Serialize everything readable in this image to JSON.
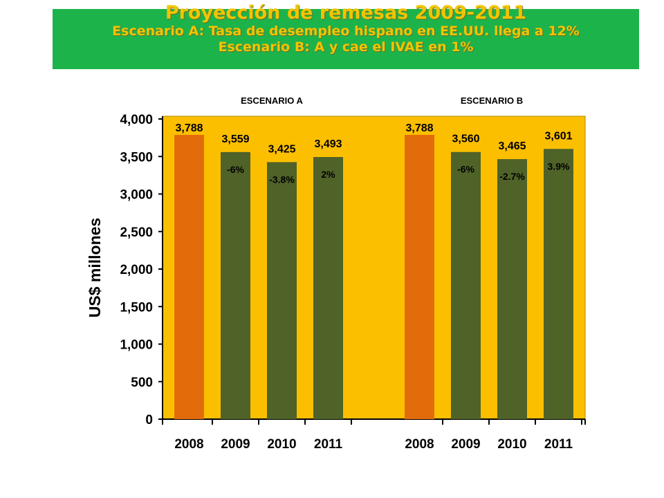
{
  "title": {
    "main": "Proyección de remesas 2009-2011",
    "line1": "Escenario A: Tasa de desempleo hispano en EE.UU. llega a 12%",
    "line2": "Escenario B: A y cae el IVAE en 1%"
  },
  "colors": {
    "banner": "#1db34b",
    "title_text": "#f3c400",
    "plot_bg": "#fbbf00",
    "bar_base_year": "#e36c0a",
    "bar_projection": "#4f6228"
  },
  "chart_data": {
    "type": "bar",
    "ylabel": "US$ millones",
    "ylim": [
      0,
      4000
    ],
    "yticks": [
      "0",
      "500",
      "1,000",
      "1,500",
      "2,000",
      "2,500",
      "3,000",
      "3,500",
      "4,000"
    ],
    "grid": false,
    "groups": [
      {
        "name": "ESCENARIO A",
        "categories": [
          "2008",
          "2009",
          "2010",
          "2011"
        ],
        "values": [
          3788,
          3559,
          3425,
          3493
        ],
        "value_labels": [
          "3,788",
          "3,559",
          "3,425",
          "3,493"
        ],
        "change_labels": [
          "",
          "-6%",
          "-3.8%",
          "2%"
        ]
      },
      {
        "name": "ESCENARIO B",
        "categories": [
          "2008",
          "2009",
          "2010",
          "2011"
        ],
        "values": [
          3788,
          3560,
          3465,
          3601
        ],
        "value_labels": [
          "3,788",
          "3,560",
          "3,465",
          "3,601"
        ],
        "change_labels": [
          "",
          "-6%",
          "-2.7%",
          "3.9%"
        ]
      }
    ]
  }
}
